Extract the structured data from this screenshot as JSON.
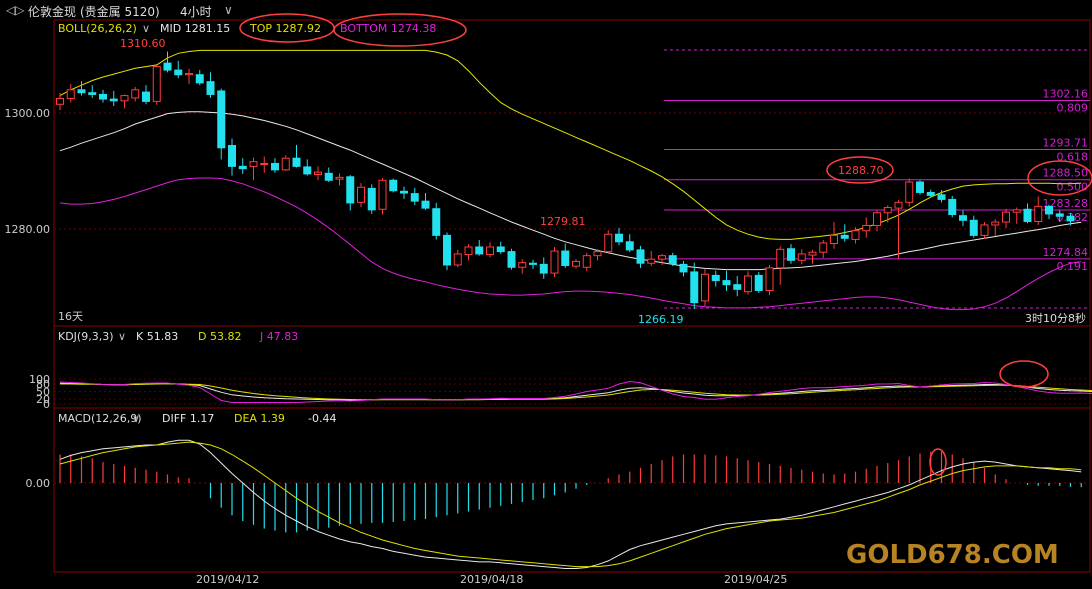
{
  "header": {
    "nav_icon": "back-forward-icon",
    "instrument": "伦敦金现",
    "instrument_sub": "(贵金属 5120)",
    "period": "4小时",
    "period_chevron": "chevron-down-icon"
  },
  "main_legend": {
    "name": "BOLL(26,26,2)",
    "mid": "MID 1281.15",
    "top": "TOP 1287.92",
    "bottom": "BOTTOM 1274.38",
    "chevron": "chevron-down-icon"
  },
  "main_axis": {
    "ticks": [
      "1300.00",
      "1280.00"
    ]
  },
  "price_labels": {
    "high": "1310.60",
    "mid_high": "1279.81",
    "low": "1266.19",
    "peak": "1288.70"
  },
  "fib_levels": [
    {
      "price": 1302.16,
      "price_label": "1302.16",
      "ratio": "0.809"
    },
    {
      "price": 1293.71,
      "price_label": "1293.71",
      "ratio": "0.618"
    },
    {
      "price": 1288.5,
      "price_label": "1288.50",
      "ratio": "0.500"
    },
    {
      "price": 1283.28,
      "price_label": "1283.28",
      "ratio": "0.382"
    },
    {
      "price": 1274.84,
      "price_label": "1274.84",
      "ratio": "0.191"
    }
  ],
  "main_footer_left": "16天",
  "countdown": "3时10分8秒",
  "kdj_legend": {
    "name": "KDJ(9,3,3)",
    "k": "K 51.83",
    "d": "D 53.82",
    "j": "J 47.83"
  },
  "kdj_axis": {
    "ticks": [
      "100",
      "80",
      "50",
      "20",
      "0"
    ]
  },
  "macd_legend": {
    "name": "MACD(12,26,9)",
    "diff": "DIFF 1.17",
    "dea": "DEA 1.39",
    "macd": "-0.44"
  },
  "macd_axis": {
    "ticks": [
      "0.00"
    ]
  },
  "date_labels": [
    "2019/04/12",
    "2019/04/18",
    "2019/04/25"
  ],
  "watermark": "GOLD678.COM",
  "colors": {
    "up": "#ff3b3b",
    "down": "#22e0ee",
    "boll_mid": "#e8e8e8",
    "boll_top": "#e6e600",
    "boll_bottom": "#e020e0",
    "fib": "#d020d0",
    "annotation": "#ff4040"
  },
  "chart_data": {
    "type": "candlestick",
    "y_range": [
      1264,
      1312
    ],
    "candles": [
      [
        1301.5,
        1303.5,
        1300.5,
        1302.5
      ],
      [
        1302.5,
        1305,
        1301.8,
        1304
      ],
      [
        1304,
        1305.5,
        1303,
        1303.5
      ],
      [
        1303.5,
        1304.8,
        1302.6,
        1303.2
      ],
      [
        1303.2,
        1304,
        1301.8,
        1302.4
      ],
      [
        1302.4,
        1303.8,
        1301.2,
        1302.1
      ],
      [
        1302.1,
        1303.2,
        1300.8,
        1303
      ],
      [
        1302.6,
        1304.5,
        1302,
        1304
      ],
      [
        1303.6,
        1304.8,
        1301.5,
        1302
      ],
      [
        1302,
        1308.2,
        1301.4,
        1308
      ],
      [
        1308.6,
        1310.6,
        1307,
        1307.4
      ],
      [
        1307.4,
        1309,
        1306,
        1306.6
      ],
      [
        1306.6,
        1307.6,
        1305,
        1306.8
      ],
      [
        1306.6,
        1307.4,
        1304.8,
        1305.2
      ],
      [
        1305.4,
        1307,
        1302.6,
        1303.2
      ],
      [
        1303.8,
        1304.2,
        1292,
        1294
      ],
      [
        1294.4,
        1295.6,
        1289.2,
        1290.8
      ],
      [
        1290.8,
        1292.2,
        1289.5,
        1290.4
      ],
      [
        1290.8,
        1292.3,
        1288.4,
        1291.6
      ],
      [
        1291.2,
        1292.5,
        1289.7,
        1291.3
      ],
      [
        1291.3,
        1292.2,
        1289.7,
        1290.2
      ],
      [
        1290.2,
        1292.7,
        1290,
        1292.2
      ],
      [
        1292.2,
        1294.5,
        1290.6,
        1290.8
      ],
      [
        1290.7,
        1292,
        1289.2,
        1289.5
      ],
      [
        1289.4,
        1290.8,
        1288.4,
        1289.8
      ],
      [
        1289.6,
        1290.6,
        1288.1,
        1288.4
      ],
      [
        1288.6,
        1289.6,
        1287.5,
        1288.9
      ],
      [
        1289,
        1289.3,
        1283.2,
        1284.5
      ],
      [
        1284.6,
        1287.9,
        1283.8,
        1287.2
      ],
      [
        1287,
        1287.7,
        1282.6,
        1283.3
      ],
      [
        1283.4,
        1288.8,
        1282.5,
        1288.4
      ],
      [
        1288.4,
        1288.7,
        1286.3,
        1286.6
      ],
      [
        1286.5,
        1287.3,
        1285.2,
        1286.2
      ],
      [
        1286.1,
        1287.1,
        1284.1,
        1284.8
      ],
      [
        1284.8,
        1286.2,
        1283.3,
        1283.6
      ],
      [
        1283.5,
        1284.5,
        1278.2,
        1278.9
      ],
      [
        1278.9,
        1279.4,
        1272.9,
        1273.8
      ],
      [
        1273.8,
        1276.4,
        1273.4,
        1275.7
      ],
      [
        1275.6,
        1277.4,
        1274.6,
        1276.9
      ],
      [
        1276.9,
        1278.1,
        1275.4,
        1275.7
      ],
      [
        1275.6,
        1277.7,
        1275.1,
        1276.9
      ],
      [
        1276.9,
        1277.8,
        1275.7,
        1276.1
      ],
      [
        1276.1,
        1276.6,
        1273,
        1273.4
      ],
      [
        1273.4,
        1274.8,
        1272.3,
        1274.2
      ],
      [
        1274.1,
        1274.7,
        1273.1,
        1273.9
      ],
      [
        1273.9,
        1275.1,
        1271.4,
        1272.4
      ],
      [
        1272.4,
        1276.9,
        1271.7,
        1276.2
      ],
      [
        1276.2,
        1277.5,
        1273.3,
        1273.7
      ],
      [
        1273.6,
        1274.8,
        1273.2,
        1274.4
      ],
      [
        1273.4,
        1275.9,
        1272.7,
        1275.4
      ],
      [
        1275.4,
        1276.5,
        1274.6,
        1276.1
      ],
      [
        1276.1,
        1279.8,
        1275.7,
        1279.1
      ],
      [
        1279.1,
        1280.2,
        1277.2,
        1277.8
      ],
      [
        1277.8,
        1279.1,
        1276,
        1276.4
      ],
      [
        1276.4,
        1277.1,
        1273.3,
        1274.1
      ],
      [
        1274.1,
        1276.2,
        1273.6,
        1274.8
      ],
      [
        1274.8,
        1275.7,
        1273.8,
        1275.4
      ],
      [
        1275.4,
        1275.9,
        1273.6,
        1274
      ],
      [
        1273.9,
        1274.5,
        1271.8,
        1272.6
      ],
      [
        1272.6,
        1274.2,
        1266.2,
        1267.3
      ],
      [
        1267.6,
        1273.2,
        1266.7,
        1272.2
      ],
      [
        1272,
        1272.8,
        1270.1,
        1271.1
      ],
      [
        1271.1,
        1272.8,
        1269.3,
        1270.4
      ],
      [
        1270.4,
        1271.9,
        1268.4,
        1269.6
      ],
      [
        1269.2,
        1272.7,
        1268.7,
        1271.9
      ],
      [
        1272,
        1272.6,
        1269,
        1269.4
      ],
      [
        1269.4,
        1273.8,
        1268.6,
        1273.3
      ],
      [
        1273.3,
        1277,
        1270.4,
        1276.5
      ],
      [
        1276.6,
        1277.4,
        1274,
        1274.6
      ],
      [
        1274.6,
        1276.5,
        1273.9,
        1275.7
      ],
      [
        1275.5,
        1276.4,
        1274,
        1276
      ],
      [
        1276,
        1278.1,
        1275,
        1277.6
      ],
      [
        1277.5,
        1281.2,
        1276.6,
        1278.9
      ],
      [
        1278.9,
        1280.8,
        1277.8,
        1278.4
      ],
      [
        1278.2,
        1280.3,
        1277.5,
        1279.7
      ],
      [
        1279.7,
        1282,
        1278.5,
        1280.6
      ],
      [
        1280.6,
        1283.3,
        1279.6,
        1282.8
      ],
      [
        1282.8,
        1284.1,
        1281.1,
        1283.7
      ],
      [
        1283.6,
        1285,
        1274.9,
        1284.6
      ],
      [
        1284.6,
        1288.7,
        1283.9,
        1288.1
      ],
      [
        1288.1,
        1288.4,
        1285.9,
        1286.3
      ],
      [
        1286.3,
        1286.8,
        1285.4,
        1285.8
      ],
      [
        1285.9,
        1286.7,
        1284.6,
        1285.1
      ],
      [
        1285.1,
        1285.7,
        1282,
        1282.5
      ],
      [
        1282.3,
        1283.2,
        1280.5,
        1281.5
      ],
      [
        1281.5,
        1282.3,
        1278.5,
        1278.9
      ],
      [
        1278.9,
        1281.2,
        1278.3,
        1280.7
      ],
      [
        1280.7,
        1281.7,
        1278.8,
        1281.2
      ],
      [
        1281.2,
        1283.5,
        1280.2,
        1282.9
      ],
      [
        1282.9,
        1283.7,
        1280.9,
        1283.3
      ],
      [
        1283.4,
        1284.4,
        1281,
        1281.3
      ],
      [
        1281.3,
        1285.6,
        1280.7,
        1283.9
      ],
      [
        1283.9,
        1284.2,
        1281.7,
        1282.6
      ],
      [
        1282.6,
        1283.2,
        1281.2,
        1282.2
      ],
      [
        1282.2,
        1282.8,
        1280.6,
        1281.4
      ]
    ],
    "boll_mid": [
      1293.5,
      1294.1,
      1294.8,
      1295.4,
      1296,
      1296.6,
      1297.3,
      1298.1,
      1298.7,
      1299.3,
      1299.9,
      1300.1,
      1300.2,
      1300.2,
      1300.1,
      1300,
      1299.8,
      1299.5,
      1299.1,
      1298.7,
      1298.2,
      1297.7,
      1297.1,
      1296.4,
      1295.7,
      1295,
      1294.3,
      1293.6,
      1292.8,
      1292,
      1291.2,
      1290.4,
      1289.6,
      1288.8,
      1287.9,
      1287,
      1286.1,
      1285.2,
      1284.4,
      1283.6,
      1282.8,
      1282,
      1281.2,
      1280.5,
      1279.8,
      1279.1,
      1278.4,
      1277.8,
      1277.3,
      1276.8,
      1276.3,
      1275.9,
      1275.5,
      1275.1,
      1274.8,
      1274.5,
      1274.2,
      1273.9,
      1273.6,
      1273.4,
      1273.2,
      1273.1,
      1273,
      1273,
      1273,
      1273,
      1273.1,
      1273.2,
      1273.3,
      1273.4,
      1273.6,
      1273.8,
      1274,
      1274.2,
      1274.4,
      1274.7,
      1275,
      1275.3,
      1275.7,
      1276.1,
      1276.4,
      1276.8,
      1277.2,
      1277.5,
      1277.8,
      1278.1,
      1278.4,
      1278.7,
      1279,
      1279.3,
      1279.6,
      1279.9,
      1280.2,
      1280.6,
      1280.9,
      1281.15
    ],
    "boll_top": [
      1303,
      1304,
      1304.8,
      1305.6,
      1306.2,
      1306.7,
      1307.2,
      1307.7,
      1308,
      1308.3,
      1309.5,
      1310.3,
      1310.6,
      1310.8,
      1310.8,
      1310.8,
      1310.8,
      1310.8,
      1310.8,
      1310.8,
      1310.8,
      1310.8,
      1310.8,
      1310.8,
      1310.8,
      1310.8,
      1310.8,
      1310.8,
      1310.8,
      1310.8,
      1310.8,
      1310.8,
      1310.8,
      1310.8,
      1310.8,
      1310.5,
      1310,
      1309,
      1307.3,
      1305.3,
      1303.5,
      1301.8,
      1300.7,
      1299.8,
      1299,
      1298.2,
      1297.4,
      1296.6,
      1295.8,
      1295,
      1294.2,
      1293.4,
      1292.6,
      1291.8,
      1290.9,
      1290,
      1289,
      1287.8,
      1286.5,
      1285,
      1283.5,
      1282,
      1280.7,
      1279.8,
      1279.1,
      1278.6,
      1278.3,
      1278.2,
      1278.2,
      1278.4,
      1278.6,
      1278.8,
      1279,
      1279.4,
      1279.8,
      1280.3,
      1280.9,
      1281.6,
      1282.4,
      1283.4,
      1284.5,
      1285.5,
      1286.3,
      1286.9,
      1287.4,
      1287.6,
      1287.7,
      1287.8,
      1287.8,
      1287.9,
      1287.9,
      1287.9,
      1287.9,
      1287.8,
      1287.8,
      1287.92
    ],
    "boll_bottom": [
      1284.5,
      1284.3,
      1284.3,
      1284.4,
      1284.7,
      1285.1,
      1285.6,
      1286.2,
      1286.8,
      1287.4,
      1288,
      1288.5,
      1288.7,
      1288.8,
      1288.8,
      1288.7,
      1288.3,
      1287.8,
      1287.1,
      1286.4,
      1285.6,
      1284.7,
      1283.8,
      1282.7,
      1281.5,
      1280.2,
      1278.8,
      1277.3,
      1275.8,
      1274.3,
      1273.2,
      1272.4,
      1271.8,
      1271.3,
      1270.9,
      1270.4,
      1270,
      1269.6,
      1269.3,
      1269,
      1268.8,
      1268.7,
      1268.6,
      1268.6,
      1268.7,
      1268.8,
      1269,
      1269.2,
      1269.3,
      1269.3,
      1269.2,
      1269.1,
      1268.9,
      1268.7,
      1268.4,
      1268.1,
      1267.7,
      1267.4,
      1267.1,
      1266.8,
      1266.6,
      1266.5,
      1266.4,
      1266.4,
      1266.4,
      1266.5,
      1266.6,
      1266.8,
      1267,
      1267.2,
      1267.4,
      1267.6,
      1267.8,
      1268,
      1268.2,
      1268.3,
      1268.3,
      1268.1,
      1267.8,
      1267.4,
      1267,
      1266.6,
      1266.3,
      1266.1,
      1266.1,
      1266.2,
      1266.6,
      1267.2,
      1268.1,
      1269.2,
      1270.4,
      1271.5,
      1272.5,
      1273.4,
      1274.1,
      1274.38
    ],
    "kdj_range": [
      0,
      110
    ],
    "k": [
      83,
      82,
      81,
      80,
      78,
      77,
      77,
      79,
      80,
      81,
      82,
      80,
      78,
      74,
      60,
      47,
      37,
      32,
      28,
      25,
      23,
      21,
      20,
      19,
      18,
      17,
      17,
      16,
      16,
      17,
      18,
      18,
      18,
      18,
      18,
      17,
      17,
      17,
      18,
      18,
      19,
      20,
      20,
      20,
      20,
      20,
      22,
      25,
      30,
      35,
      40,
      45,
      55,
      63,
      65,
      62,
      57,
      50,
      44,
      40,
      35,
      33,
      33,
      34,
      35,
      37,
      40,
      43,
      46,
      50,
      53,
      55,
      57,
      60,
      62,
      65,
      68,
      70,
      72,
      70,
      68,
      70,
      72,
      74,
      75,
      76,
      78,
      78,
      76,
      72,
      67,
      62,
      58,
      55,
      53,
      52,
      50
    ],
    "d": [
      80,
      80,
      79,
      79,
      78,
      77,
      77,
      78,
      79,
      80,
      81,
      80,
      79,
      78,
      72,
      64,
      55,
      48,
      42,
      37,
      33,
      30,
      27,
      24,
      22,
      20,
      19,
      18,
      17,
      17,
      17,
      17,
      17,
      17,
      17,
      17,
      17,
      17,
      17,
      17,
      18,
      18,
      19,
      19,
      19,
      19,
      20,
      22,
      25,
      28,
      32,
      36,
      43,
      50,
      56,
      58,
      58,
      55,
      51,
      47,
      43,
      40,
      37,
      36,
      36,
      36,
      37,
      39,
      41,
      44,
      47,
      50,
      52,
      55,
      57,
      60,
      62,
      65,
      67,
      68,
      68,
      69,
      70,
      71,
      72,
      73,
      74,
      75,
      75,
      73,
      70,
      67,
      64,
      61,
      58,
      56,
      54
    ],
    "j": [
      88,
      86,
      84,
      81,
      78,
      77,
      78,
      82,
      83,
      84,
      84,
      79,
      75,
      66,
      40,
      14,
      6,
      6,
      6,
      6,
      6,
      6,
      6,
      8,
      10,
      12,
      13,
      12,
      14,
      17,
      20,
      20,
      20,
      20,
      20,
      17,
      17,
      17,
      20,
      20,
      21,
      23,
      22,
      22,
      22,
      22,
      26,
      31,
      40,
      50,
      56,
      63,
      80,
      90,
      85,
      70,
      55,
      40,
      30,
      26,
      19,
      19,
      25,
      30,
      33,
      39,
      46,
      51,
      56,
      62,
      65,
      65,
      67,
      70,
      72,
      75,
      80,
      80,
      82,
      74,
      68,
      72,
      76,
      80,
      81,
      82,
      86,
      84,
      78,
      70,
      61,
      52,
      46,
      43,
      43,
      44,
      42
    ],
    "macd_range": [
      -9,
      5
    ],
    "diff": [
      2.5,
      2.9,
      3.2,
      3.4,
      3.6,
      3.7,
      3.8,
      3.9,
      4,
      4,
      4.3,
      4.5,
      4.5,
      4.1,
      3.2,
      2.1,
      1,
      0,
      -1,
      -1.9,
      -2.7,
      -3.4,
      -4,
      -4.6,
      -5.1,
      -5.5,
      -5.9,
      -6.2,
      -6.4,
      -6.7,
      -6.9,
      -7.2,
      -7.4,
      -7.6,
      -7.8,
      -7.9,
      -8,
      -8.1,
      -8.2,
      -8.3,
      -8.3,
      -8.4,
      -8.5,
      -8.6,
      -8.7,
      -8.8,
      -8.9,
      -9,
      -9,
      -8.9,
      -8.6,
      -8.2,
      -7.6,
      -7,
      -6.6,
      -6.3,
      -6,
      -5.7,
      -5.4,
      -5.1,
      -4.8,
      -4.5,
      -4.3,
      -4.2,
      -4.1,
      -4,
      -3.9,
      -3.8,
      -3.6,
      -3.4,
      -3.1,
      -2.8,
      -2.5,
      -2.2,
      -1.9,
      -1.6,
      -1.3,
      -1,
      -0.6,
      -0.2,
      0.3,
      0.8,
      1.3,
      1.7,
      2,
      2.2,
      2.3,
      2.2,
      2,
      1.8,
      1.7,
      1.6,
      1.5,
      1.4,
      1.3,
      1.17
    ],
    "dea": [
      2,
      2.3,
      2.6,
      2.9,
      3.2,
      3.4,
      3.6,
      3.8,
      3.9,
      4,
      4.1,
      4.2,
      4.3,
      4.2,
      4,
      3.6,
      3,
      2.3,
      1.6,
      0.8,
      0,
      -0.8,
      -1.6,
      -2.3,
      -3,
      -3.6,
      -4.2,
      -4.7,
      -5.2,
      -5.6,
      -6,
      -6.3,
      -6.6,
      -6.9,
      -7.1,
      -7.3,
      -7.5,
      -7.7,
      -7.8,
      -7.9,
      -8,
      -8.1,
      -8.2,
      -8.3,
      -8.4,
      -8.5,
      -8.6,
      -8.7,
      -8.8,
      -8.8,
      -8.8,
      -8.7,
      -8.5,
      -8.2,
      -7.8,
      -7.4,
      -7,
      -6.6,
      -6.2,
      -5.8,
      -5.4,
      -5.1,
      -4.8,
      -4.6,
      -4.4,
      -4.2,
      -4,
      -3.9,
      -3.8,
      -3.7,
      -3.5,
      -3.3,
      -3.1,
      -2.8,
      -2.5,
      -2.2,
      -1.9,
      -1.5,
      -1.1,
      -0.7,
      -0.2,
      0.2,
      0.6,
      1,
      1.3,
      1.5,
      1.7,
      1.8,
      1.8,
      1.8,
      1.7,
      1.6,
      1.6,
      1.5,
      1.5,
      1.39
    ],
    "macd_hist": [
      3,
      3,
      2.8,
      2.6,
      2.2,
      2,
      1.8,
      1.6,
      1.4,
      1.2,
      0.9,
      0.6,
      0.5,
      0,
      -1.6,
      -2.6,
      -3.4,
      -4,
      -4.4,
      -4.8,
      -5,
      -5.2,
      -5.2,
      -5,
      -4.9,
      -4.7,
      -4.5,
      -4.3,
      -4.3,
      -4.2,
      -4.2,
      -4.1,
      -4,
      -3.9,
      -3.8,
      -3.6,
      -3.4,
      -3.2,
      -3,
      -2.8,
      -2.6,
      -2.4,
      -2.2,
      -2,
      -1.8,
      -1.6,
      -1.3,
      -1,
      -0.6,
      -0.2,
      0,
      0.5,
      0.9,
      1.2,
      1.6,
      2,
      2.4,
      2.8,
      3,
      3,
      3,
      2.9,
      2.8,
      2.6,
      2.4,
      2.2,
      2,
      1.8,
      1.6,
      1.4,
      1.2,
      1,
      0.9,
      1,
      1.2,
      1.5,
      1.8,
      2.1,
      2.4,
      2.8,
      3.1,
      3.3,
      3.3,
      3,
      2.6,
      2.2,
      1.6,
      0.9,
      0.4,
      0,
      -0.2,
      -0.3,
      -0.3,
      -0.3,
      -0.4,
      -0.44
    ]
  }
}
